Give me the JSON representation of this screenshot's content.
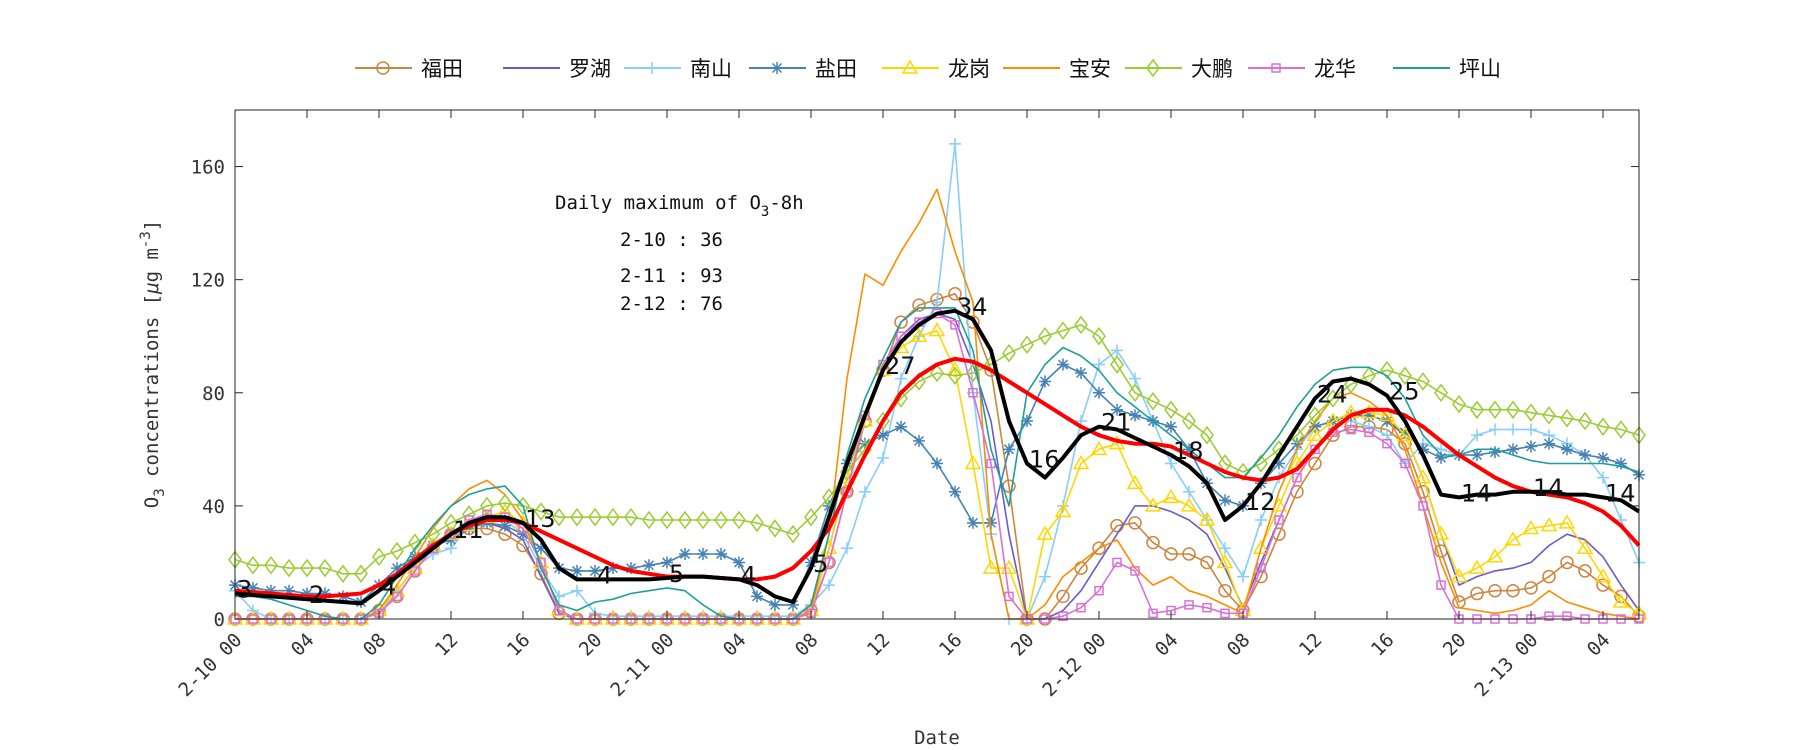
{
  "chart_data": {
    "type": "line",
    "xlabel": "Date",
    "ylabel": {
      "main": "O",
      "sub": "3",
      "mid": " concentrations [",
      "mu": "μ",
      "unit": "g m",
      "sup": "-3",
      "end": "]"
    },
    "ylim": [
      0,
      180
    ],
    "yticks": [
      0,
      40,
      80,
      120,
      160
    ],
    "x_hours_range": [
      0,
      78
    ],
    "xticks": [
      {
        "hour": 0,
        "label": "2-10 00"
      },
      {
        "hour": 4,
        "label": "04"
      },
      {
        "hour": 8,
        "label": "08"
      },
      {
        "hour": 12,
        "label": "12"
      },
      {
        "hour": 16,
        "label": "16"
      },
      {
        "hour": 20,
        "label": "20"
      },
      {
        "hour": 24,
        "label": "2-11 00"
      },
      {
        "hour": 28,
        "label": "04"
      },
      {
        "hour": 32,
        "label": "08"
      },
      {
        "hour": 36,
        "label": "12"
      },
      {
        "hour": 40,
        "label": "16"
      },
      {
        "hour": 44,
        "label": "20"
      },
      {
        "hour": 48,
        "label": "2-12 00"
      },
      {
        "hour": 52,
        "label": "04"
      },
      {
        "hour": 56,
        "label": "08"
      },
      {
        "hour": 60,
        "label": "12"
      },
      {
        "hour": 64,
        "label": "16"
      },
      {
        "hour": 68,
        "label": "20"
      },
      {
        "hour": 72,
        "label": "2-13 00"
      },
      {
        "hour": 76,
        "label": "04"
      }
    ],
    "grid": false,
    "legend_placement": "top-outside",
    "annotation": {
      "title_pre": "Daily maximum of O",
      "title_sub": "3",
      "title_post": "-8h",
      "lines": [
        "2-10 : 36",
        "2-11 : 93",
        "2-12 : 76"
      ]
    },
    "series": [
      {
        "name": "福田",
        "color": "#cd853f",
        "marker": "circle",
        "width": 1.6,
        "values": [
          0,
          0,
          0,
          0,
          0,
          0,
          0,
          0,
          3,
          8,
          17,
          25,
          30,
          32,
          32,
          30,
          26,
          16,
          2,
          0,
          0,
          0,
          0,
          0,
          0,
          0,
          0,
          0,
          0,
          0,
          0,
          0,
          3,
          20,
          45,
          70,
          88,
          105,
          111,
          113,
          115,
          105,
          88,
          47,
          0,
          0,
          8,
          18,
          25,
          33,
          34,
          27,
          23,
          23,
          20,
          10,
          3,
          15,
          30,
          45,
          55,
          65,
          68,
          68,
          67,
          62,
          45,
          24,
          6,
          9,
          10,
          10,
          11,
          15,
          20,
          17,
          12,
          8,
          1
        ]
      },
      {
        "name": "罗湖",
        "color": "#6a5acd",
        "marker": "none",
        "width": 1.6,
        "values": [
          0,
          0,
          0,
          0,
          0,
          0,
          0,
          0,
          3,
          10,
          18,
          26,
          31,
          33,
          34,
          32,
          28,
          15,
          2,
          0,
          0,
          0,
          0,
          0,
          0,
          0,
          0,
          0,
          0,
          0,
          0,
          0,
          3,
          25,
          50,
          72,
          90,
          100,
          106,
          108,
          106,
          90,
          70,
          30,
          0,
          0,
          3,
          10,
          20,
          30,
          40,
          40,
          38,
          35,
          30,
          18,
          4,
          20,
          35,
          50,
          60,
          68,
          72,
          72,
          70,
          65,
          50,
          30,
          12,
          15,
          17,
          18,
          20,
          26,
          30,
          28,
          22,
          12,
          3
        ]
      },
      {
        "name": "南山",
        "color": "#87cefa",
        "marker": "plus",
        "width": 1.6,
        "values": [
          10,
          3,
          0,
          0,
          0,
          0,
          0,
          0,
          2,
          10,
          18,
          23,
          25,
          33,
          35,
          35,
          30,
          18,
          8,
          10,
          2,
          1,
          1,
          1,
          1,
          1,
          1,
          1,
          1,
          1,
          1,
          1,
          5,
          12,
          25,
          45,
          57,
          85,
          100,
          112,
          168,
          80,
          30,
          0,
          0,
          15,
          40,
          70,
          90,
          95,
          85,
          70,
          55,
          45,
          35,
          25,
          15,
          35,
          50,
          60,
          68,
          70,
          70,
          68,
          65,
          55,
          62,
          60,
          58,
          65,
          67,
          67,
          67,
          65,
          62,
          58,
          50,
          35,
          20
        ]
      },
      {
        "name": "盐田",
        "color": "#4682b4",
        "marker": "star",
        "width": 1.6,
        "values": [
          12,
          11,
          10,
          10,
          9,
          9,
          8,
          6,
          12,
          18,
          22,
          26,
          28,
          32,
          34,
          33,
          30,
          25,
          18,
          17,
          17,
          18,
          18,
          19,
          20,
          23,
          23,
          23,
          20,
          8,
          5,
          5,
          20,
          40,
          55,
          62,
          65,
          68,
          63,
          55,
          45,
          34,
          34,
          60,
          70,
          84,
          90,
          87,
          80,
          74,
          72,
          70,
          68,
          60,
          48,
          42,
          40,
          48,
          55,
          62,
          68,
          70,
          72,
          72,
          70,
          66,
          60,
          57,
          58,
          58,
          59,
          60,
          61,
          62,
          60,
          58,
          57,
          55,
          51
        ]
      },
      {
        "name": "龙岗",
        "color": "#ffd700",
        "marker": "triangle",
        "width": 1.6,
        "values": [
          0,
          0,
          0,
          0,
          0,
          0,
          0,
          0,
          3,
          10,
          18,
          26,
          30,
          33,
          36,
          38,
          34,
          20,
          3,
          0,
          0,
          0,
          0,
          0,
          0,
          0,
          0,
          0,
          0,
          0,
          0,
          0,
          3,
          25,
          50,
          70,
          88,
          96,
          100,
          102,
          88,
          55,
          18,
          18,
          0,
          30,
          38,
          55,
          60,
          62,
          48,
          40,
          43,
          40,
          35,
          20,
          3,
          25,
          40,
          55,
          65,
          70,
          73,
          73,
          72,
          65,
          50,
          30,
          15,
          18,
          22,
          28,
          32,
          33,
          34,
          25,
          15,
          6,
          2
        ]
      },
      {
        "name": "宝安",
        "color": "#ff8c00",
        "marker": "none",
        "width": 1.6,
        "values": [
          0,
          0,
          0,
          0,
          0,
          0,
          0,
          0,
          3,
          12,
          22,
          32,
          40,
          46,
          49,
          44,
          35,
          20,
          3,
          0,
          0,
          0,
          0,
          0,
          0,
          0,
          0,
          0,
          0,
          0,
          0,
          0,
          3,
          30,
          85,
          122,
          118,
          130,
          140,
          152,
          130,
          112,
          30,
          0,
          0,
          5,
          15,
          20,
          25,
          28,
          18,
          12,
          15,
          10,
          8,
          5,
          2,
          25,
          45,
          60,
          70,
          78,
          80,
          77,
          72,
          60,
          40,
          20,
          4,
          3,
          2,
          3,
          5,
          10,
          6,
          4,
          2,
          1,
          0
        ]
      },
      {
        "name": "大鹏",
        "color": "#9acd32",
        "marker": "diamond",
        "width": 1.6,
        "values": [
          21,
          19,
          19,
          18,
          18,
          18,
          16,
          16,
          22,
          24,
          27,
          30,
          34,
          37,
          40,
          41,
          40,
          38,
          36,
          36,
          36,
          36,
          36,
          35,
          35,
          35,
          35,
          35,
          35,
          34,
          32,
          30,
          36,
          43,
          52,
          60,
          70,
          78,
          84,
          87,
          86,
          87,
          90,
          94,
          97,
          100,
          102,
          104,
          100,
          90,
          80,
          77,
          74,
          70,
          65,
          55,
          52,
          55,
          60,
          65,
          72,
          78,
          83,
          86,
          88,
          86,
          84,
          80,
          76,
          74,
          74,
          74,
          73,
          72,
          71,
          70,
          68,
          67,
          65
        ]
      },
      {
        "name": "龙华",
        "color": "#da70d6",
        "marker": "square",
        "width": 1.6,
        "values": [
          0,
          0,
          0,
          0,
          0,
          0,
          0,
          0,
          2,
          8,
          17,
          25,
          30,
          35,
          37,
          36,
          32,
          20,
          3,
          0,
          0,
          0,
          0,
          0,
          0,
          0,
          0,
          0,
          0,
          0,
          0,
          0,
          2,
          20,
          45,
          72,
          90,
          100,
          105,
          108,
          104,
          80,
          55,
          8,
          0,
          0,
          1,
          4,
          10,
          20,
          17,
          2,
          3,
          5,
          4,
          2,
          2,
          18,
          35,
          50,
          60,
          66,
          67,
          66,
          62,
          55,
          40,
          12,
          0,
          0,
          0,
          0,
          0,
          1,
          1,
          0,
          0,
          0,
          0
        ]
      },
      {
        "name": "坪山",
        "color": "#1f9f9a",
        "marker": "none",
        "width": 1.6,
        "values": [
          8,
          8,
          7,
          5,
          3,
          1,
          0,
          0,
          5,
          15,
          25,
          33,
          40,
          44,
          46,
          47,
          40,
          18,
          5,
          3,
          6,
          7,
          9,
          10,
          11,
          10,
          5,
          1,
          0,
          0,
          0,
          0,
          5,
          30,
          58,
          78,
          92,
          105,
          110,
          110,
          110,
          95,
          60,
          40,
          80,
          90,
          96,
          93,
          88,
          80,
          75,
          70,
          65,
          60,
          55,
          50,
          50,
          57,
          65,
          75,
          83,
          88,
          89,
          89,
          86,
          78,
          65,
          58,
          58,
          60,
          60,
          58,
          56,
          55,
          55,
          55,
          55,
          54,
          52
        ]
      },
      {
        "color": "#ff0000",
        "marker": "none",
        "width": 4,
        "values": [
          10,
          9.5,
          9,
          8.5,
          8,
          8,
          8.5,
          9,
          12,
          16,
          21,
          26,
          30,
          33,
          35,
          35,
          34,
          31,
          28,
          25,
          22,
          19,
          17,
          16,
          15,
          15,
          15,
          14.5,
          14,
          14,
          15,
          18,
          24,
          32,
          45,
          58,
          70,
          80,
          86,
          90,
          92,
          91,
          88,
          84,
          80,
          76,
          72,
          68,
          65,
          63,
          62,
          62,
          61,
          58,
          55,
          52,
          50,
          49,
          50,
          53,
          60,
          67,
          72,
          74,
          74,
          72,
          68,
          63,
          58,
          54,
          50,
          47,
          45,
          44,
          43,
          41,
          38,
          33,
          26
        ]
      },
      {
        "color": "#000000",
        "marker": "none",
        "width": 4,
        "values": [
          9,
          8.5,
          8,
          7.5,
          7,
          6.5,
          6,
          5.5,
          10,
          15,
          20,
          25,
          30,
          34,
          36,
          36,
          34,
          28,
          18,
          14,
          14,
          14,
          14,
          14,
          14.5,
          15,
          15,
          14.5,
          14,
          12,
          8,
          6,
          18,
          36,
          55,
          72,
          88,
          98,
          104,
          108,
          109,
          106,
          95,
          70,
          55,
          50,
          57,
          65,
          68,
          67,
          64,
          61,
          58,
          54,
          48,
          35,
          40,
          48,
          58,
          68,
          78,
          84,
          85,
          83,
          79,
          70,
          58,
          44,
          43,
          44,
          44,
          45,
          45,
          45,
          44,
          44,
          43,
          42,
          38
        ]
      }
    ],
    "point_labels": [
      {
        "hour": 0,
        "text": "3"
      },
      {
        "hour": 4,
        "text": "2"
      },
      {
        "hour": 8,
        "text": "4"
      },
      {
        "hour": 12,
        "text": "11"
      },
      {
        "hour": 16,
        "text": "13"
      },
      {
        "hour": 20,
        "text": "4"
      },
      {
        "hour": 24,
        "text": "5"
      },
      {
        "hour": 28,
        "text": "4"
      },
      {
        "hour": 32,
        "text": "5"
      },
      {
        "hour": 36,
        "text": "27"
      },
      {
        "hour": 40,
        "text": "34"
      },
      {
        "hour": 44,
        "text": "16"
      },
      {
        "hour": 48,
        "text": "21"
      },
      {
        "hour": 52,
        "text": "18"
      },
      {
        "hour": 56,
        "text": "12"
      },
      {
        "hour": 60,
        "text": "24"
      },
      {
        "hour": 64,
        "text": "25"
      },
      {
        "hour": 68,
        "text": "14"
      },
      {
        "hour": 72,
        "text": "14"
      },
      {
        "hour": 76,
        "text": "14"
      }
    ]
  }
}
